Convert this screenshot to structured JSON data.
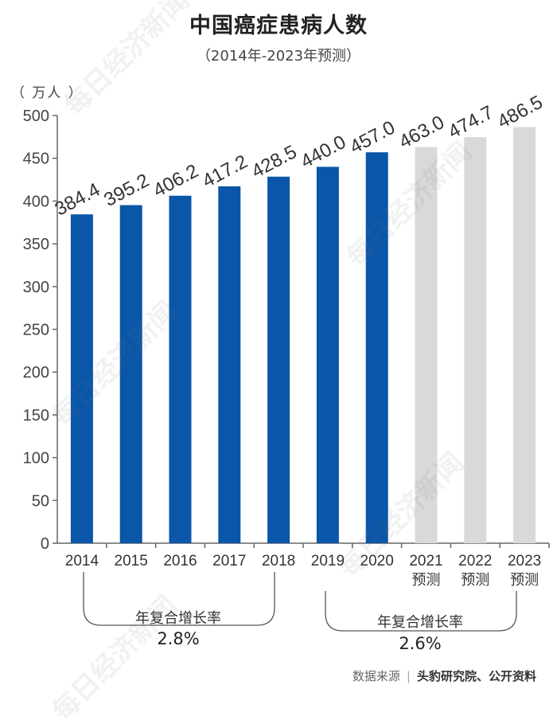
{
  "watermark": "每日经济新闻",
  "source": {
    "label": "数据来源",
    "separator": "|",
    "orgs": "头豹研究院、公开资料"
  },
  "growth": [
    {
      "label": "年复合增长率",
      "value": "2.8%"
    },
    {
      "label": "年复合增长率",
      "value": "2.6%"
    }
  ],
  "colors": {
    "actual": "#0a56a8",
    "forecast": "#d9d9d9",
    "axis": "#666666"
  },
  "chart_data": {
    "type": "bar",
    "title": "中国癌症患病人数",
    "subtitle": "（2014年-2023年预测）",
    "ylabel": "（ 万人 ）",
    "xlabel": "",
    "ylim": [
      0,
      500
    ],
    "yticks": [
      0,
      50,
      100,
      150,
      200,
      250,
      300,
      350,
      400,
      450,
      500
    ],
    "categories": [
      "2014",
      "2015",
      "2016",
      "2017",
      "2018",
      "2019",
      "2020",
      "2021",
      "2022",
      "2023"
    ],
    "category_sublabels": [
      "",
      "",
      "",
      "",
      "",
      "",
      "",
      "预测",
      "预测",
      "预测"
    ],
    "values": [
      384.4,
      395.2,
      406.2,
      417.2,
      428.5,
      440.0,
      457.0,
      463.0,
      474.7,
      486.5
    ],
    "value_labels": [
      "384.4",
      "395.2",
      "406.2",
      "417.2",
      "428.5",
      "440.0",
      "457.0",
      "463.0",
      "474.7",
      "486.5"
    ],
    "forecast": [
      false,
      false,
      false,
      false,
      false,
      false,
      false,
      true,
      true,
      true
    ]
  }
}
